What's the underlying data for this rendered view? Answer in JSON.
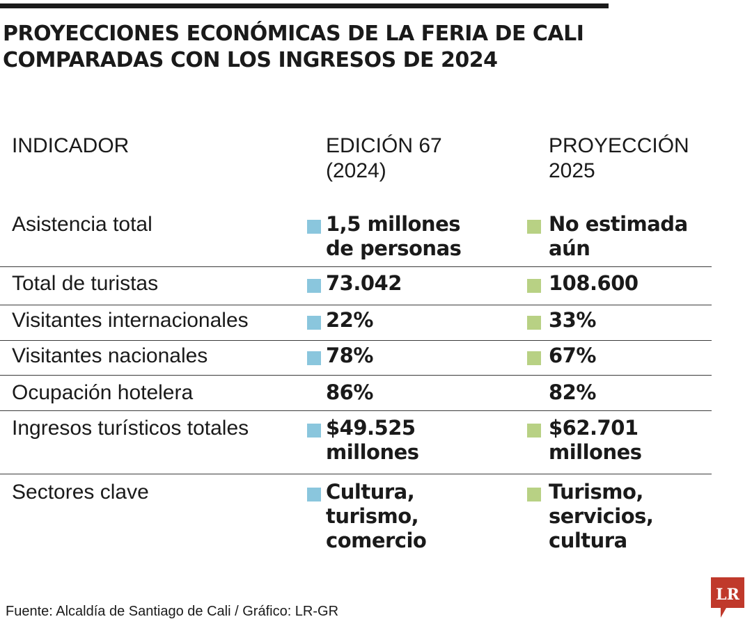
{
  "title_lines": [
    "PROYECCIONES ECONÓMICAS DE LA FERIA DE CALI",
    "COMPARADAS CON LOS INGRESOS DE 2024"
  ],
  "columns": {
    "indicator": "INDICADOR",
    "edition_2024": [
      "EDICIÓN 67",
      "(2024)"
    ],
    "projection_2025": [
      "PROYECCIÓN",
      "2025"
    ]
  },
  "colors": {
    "edition_2024": "#8ac6dd",
    "projection_2025": "#b8d184",
    "logo": "#c0392b"
  },
  "chart_data": {
    "type": "table",
    "headers": [
      "INDICADOR",
      "EDICIÓN 67 (2024)",
      "PROYECCIÓN 2025"
    ],
    "rows": [
      {
        "indicator": "Asistencia total",
        "v2024": [
          "1,5 millones",
          "de personas"
        ],
        "v2025": [
          "No estimada",
          "aún"
        ],
        "marker": true
      },
      {
        "indicator": "Total de turistas",
        "v2024": [
          "73.042"
        ],
        "v2025": [
          "108.600"
        ],
        "marker": true
      },
      {
        "indicator": "Visitantes internacionales",
        "v2024": [
          "22%"
        ],
        "v2025": [
          "33%"
        ],
        "marker": true
      },
      {
        "indicator": "Visitantes nacionales",
        "v2024": [
          "78%"
        ],
        "v2025": [
          "67%"
        ],
        "marker": true
      },
      {
        "indicator": "Ocupación hotelera",
        "v2024": [
          "86%"
        ],
        "v2025": [
          "82%"
        ],
        "marker": false
      },
      {
        "indicator": "Ingresos turísticos totales",
        "v2024": [
          "$49.525",
          "millones"
        ],
        "v2025": [
          "$62.701",
          "millones"
        ],
        "marker": true
      },
      {
        "indicator": "Sectores clave",
        "v2024": [
          "Cultura,",
          "turismo,",
          "comercio"
        ],
        "v2025": [
          "Turismo,",
          "servicios,",
          "cultura"
        ],
        "marker": true
      }
    ]
  },
  "footer": {
    "source": "Fuente: Alcaldía de Santiago de Cali  / Gráfico: LR-GR",
    "logo_text": "LR"
  }
}
